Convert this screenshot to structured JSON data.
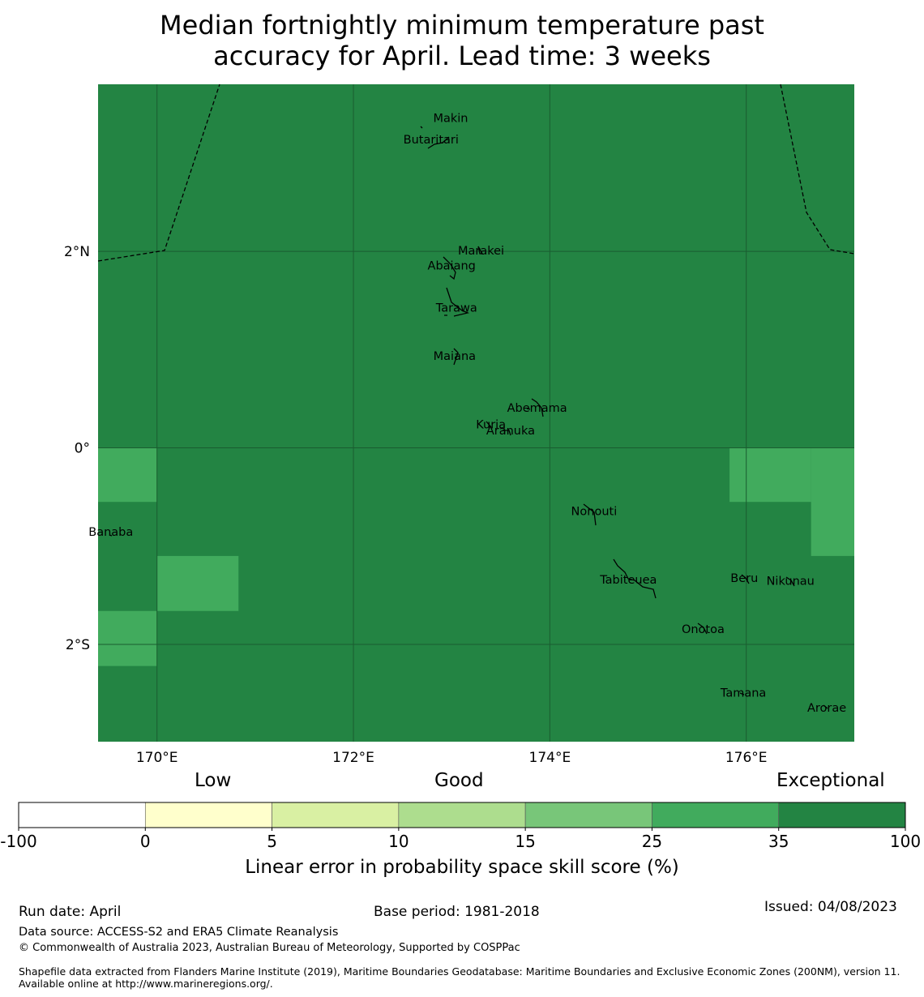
{
  "title": {
    "line1": "Median fortnightly minimum temperature past",
    "line2": "accuracy for April. Lead time: 3 weeks"
  },
  "map": {
    "lat_labels": [
      "2°N",
      "0°",
      "2°S"
    ],
    "lon_labels": [
      "170°E",
      "172°E",
      "174°E",
      "176°E"
    ],
    "extent": {
      "lon": [
        169.4,
        177.1
      ],
      "lat": [
        -2.99,
        3.7
      ]
    },
    "colors": {
      "exceptional": "#238443",
      "very_good": "#41ab5d",
      "grid": "#1a5c30",
      "coast": "#000000"
    },
    "lighter_cells": [
      {
        "lon": [
          169.4,
          170.0
        ],
        "lat": [
          -0.55,
          0.0
        ],
        "category": "25-35"
      },
      {
        "lon": [
          170.0,
          170.83
        ],
        "lat": [
          -1.66,
          -1.1
        ],
        "category": "25-35"
      },
      {
        "lon": [
          169.4,
          170.0
        ],
        "lat": [
          -2.22,
          -1.66
        ],
        "category": "25-35"
      },
      {
        "lon": [
          175.83,
          176.66
        ],
        "lat": [
          -0.55,
          0.0
        ],
        "category": "25-35"
      },
      {
        "lon": [
          176.66,
          177.1
        ],
        "lat": [
          -1.1,
          0.0
        ],
        "category": "25-35"
      }
    ],
    "islands": [
      {
        "name": "Makin",
        "lon": 172.99,
        "lat": 3.35
      },
      {
        "name": "Butaritari",
        "lon": 172.79,
        "lat": 3.13
      },
      {
        "name": "Marakei",
        "lon": 173.3,
        "lat": 2.0
      },
      {
        "name": "Abaiang",
        "lon": 173.0,
        "lat": 1.85
      },
      {
        "name": "Tarawa",
        "lon": 173.05,
        "lat": 1.42
      },
      {
        "name": "Maiana",
        "lon": 173.03,
        "lat": 0.93
      },
      {
        "name": "Abemama",
        "lon": 173.87,
        "lat": 0.4
      },
      {
        "name": "Kuria",
        "lon": 173.4,
        "lat": 0.23
      },
      {
        "name": "Aranuka",
        "lon": 173.6,
        "lat": 0.17
      },
      {
        "name": "Banaba",
        "lon": 169.53,
        "lat": -0.86
      },
      {
        "name": "Nonouti",
        "lon": 174.45,
        "lat": -0.65
      },
      {
        "name": "Tabiteuea",
        "lon": 174.8,
        "lat": -1.35
      },
      {
        "name": "Beru",
        "lon": 175.98,
        "lat": -1.33
      },
      {
        "name": "Nikunau",
        "lon": 176.45,
        "lat": -1.36
      },
      {
        "name": "Onotoa",
        "lon": 175.56,
        "lat": -1.85
      },
      {
        "name": "Tamana",
        "lon": 175.97,
        "lat": -2.5
      },
      {
        "name": "Arorae",
        "lon": 176.82,
        "lat": -2.65
      }
    ]
  },
  "legend": {
    "categories": [
      "Low",
      "Good",
      "Exceptional"
    ],
    "ticks": [
      "-100",
      "0",
      "5",
      "10",
      "15",
      "25",
      "35",
      "100"
    ],
    "colors": [
      "#ffffff",
      "#ffffcc",
      "#d9f0a3",
      "#addd8e",
      "#78c679",
      "#41ab5d",
      "#238443"
    ],
    "label": "Linear error in probability space skill score (%)"
  },
  "footer": {
    "run_date": "Run date: April",
    "base_period": "Base period: 1981-2018",
    "issued": "Issued: 04/08/2023",
    "data_source": "Data source: ACCESS-S2 and ERA5 Climate Reanalysis",
    "copyright": "© Commonwealth of Australia 2023, Australian Bureau of Meteorology, Supported by COSPPac",
    "shapefile": "Shapefile data extracted from Flanders Marine Institute (2019), Maritime Boundaries Geodatabase: Maritime Boundaries and Exclusive Economic Zones (200NM), version 11. Available online at http://www.marineregions.org/."
  }
}
